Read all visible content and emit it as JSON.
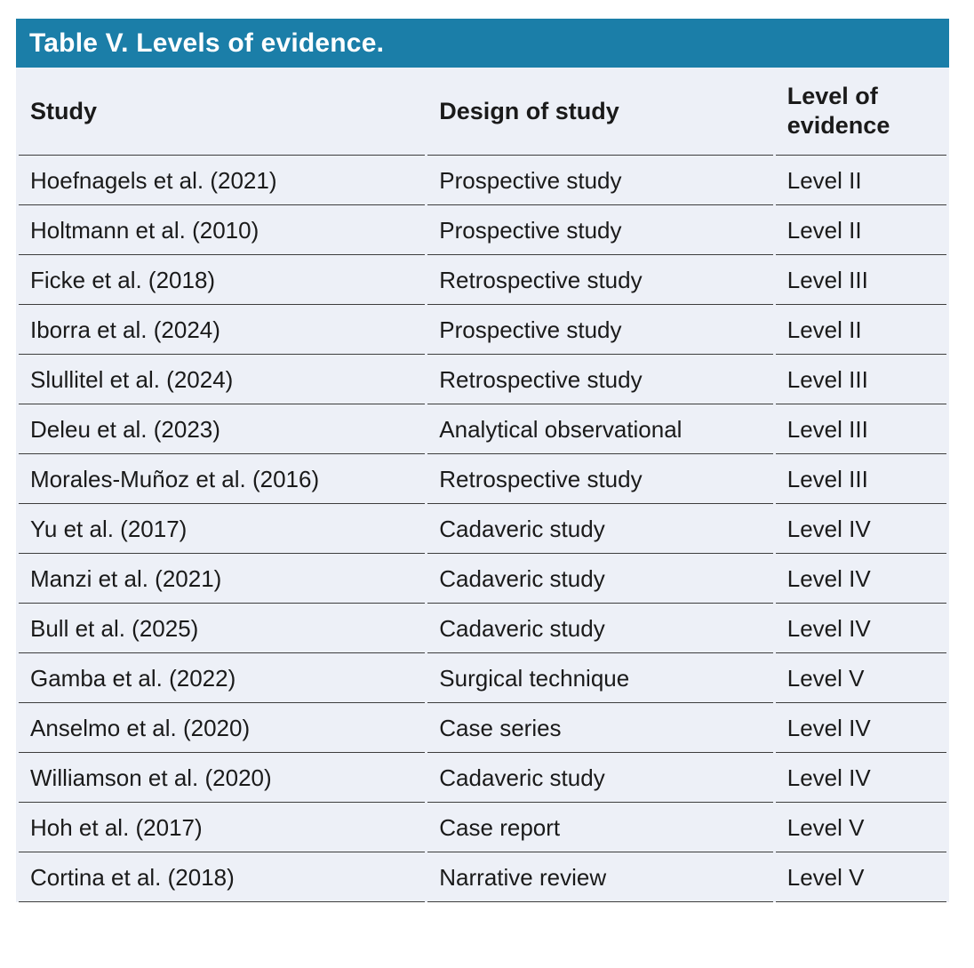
{
  "table": {
    "title": "Table V. Levels of evidence.",
    "columns": [
      "Study",
      "Design of study",
      "Level of evidence"
    ],
    "rows": [
      [
        "Hoefnagels et al. (2021)",
        "Prospective study",
        "Level II"
      ],
      [
        "Holtmann et al. (2010)",
        "Prospective study",
        "Level II"
      ],
      [
        "Ficke et al. (2018)",
        "Retrospective study",
        "Level III"
      ],
      [
        "Iborra et al. (2024)",
        "Prospective study",
        "Level II"
      ],
      [
        "Slullitel et al. (2024)",
        "Retrospective study",
        "Level III"
      ],
      [
        "Deleu et al. (2023)",
        "Analytical observational",
        "Level III"
      ],
      [
        "Morales-Muñoz et al. (2016)",
        "Retrospective study",
        "Level III"
      ],
      [
        "Yu et al. (2017)",
        "Cadaveric study",
        "Level IV"
      ],
      [
        "Manzi et al. (2021)",
        "Cadaveric study",
        "Level IV"
      ],
      [
        "Bull et al. (2025)",
        "Cadaveric study",
        "Level IV"
      ],
      [
        "Gamba et al. (2022)",
        "Surgical technique",
        "Level V"
      ],
      [
        "Anselmo et al. (2020)",
        "Case series",
        "Level IV"
      ],
      [
        "Williamson et al. (2020)",
        "Cadaveric study",
        "Level IV"
      ],
      [
        "Hoh et al. (2017)",
        "Case report",
        "Level V"
      ],
      [
        "Cortina et al. (2018)",
        "Narrative review",
        "Level V"
      ]
    ],
    "colors": {
      "header_bar_bg": "#1b7ea8",
      "header_bar_text": "#ffffff",
      "body_bg": "#edf0f7",
      "row_divider": "#3d3d3d",
      "text": "#1a1a1a"
    }
  }
}
